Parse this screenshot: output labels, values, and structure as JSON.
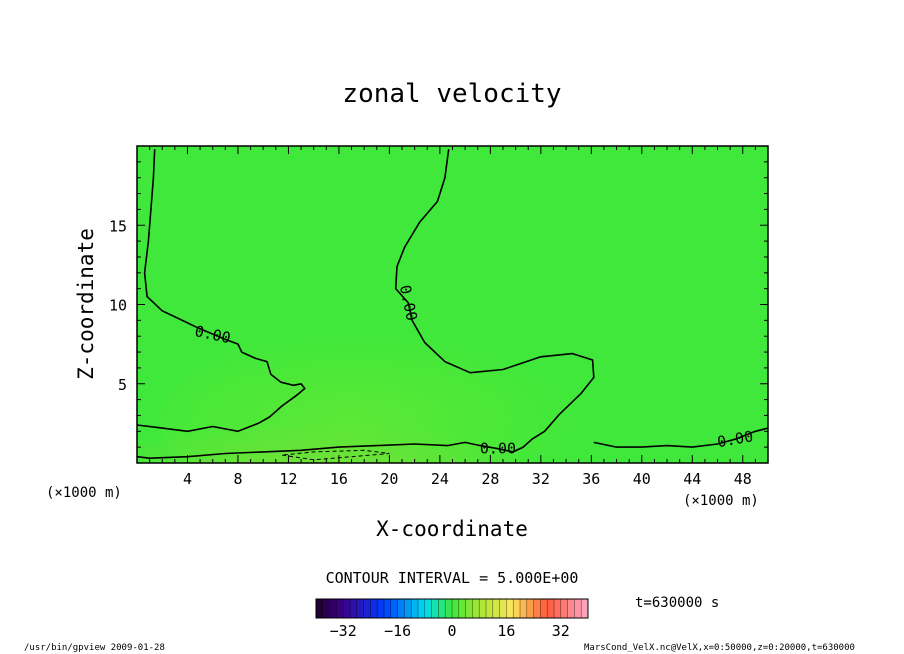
{
  "chart_data": {
    "type": "heatmap",
    "title": "zonal velocity",
    "xlabel": "X-coordinate",
    "ylabel": "Z-coordinate",
    "x_unit": "(×1000 m)",
    "y_unit": "(×1000 m)",
    "xlim": [
      0,
      50
    ],
    "ylim": [
      0,
      20
    ],
    "x_ticks": [
      "4",
      "8",
      "12",
      "16",
      "20",
      "24",
      "28",
      "32",
      "36",
      "40",
      "44",
      "48"
    ],
    "x_tick_values": [
      4,
      8,
      12,
      16,
      20,
      24,
      28,
      32,
      36,
      40,
      44,
      48
    ],
    "y_ticks": [
      "5",
      "10",
      "15"
    ],
    "y_tick_values": [
      5,
      10,
      15
    ],
    "contour_interval_text": "CONTOUR INTERVAL = 5.000E+00",
    "contour_labels": [
      "0.00",
      "0.00",
      "0.00",
      "0.00"
    ],
    "contour_label_positions": [
      [
        6,
        8.1
      ],
      [
        21.5,
        10.1
      ],
      [
        28.6,
        0.9
      ],
      [
        47.4,
        1.5
      ]
    ],
    "contour_zero_line_upper": [
      [
        1.4,
        19.8
      ],
      [
        1.3,
        18
      ],
      [
        1.1,
        16
      ],
      [
        0.9,
        14
      ],
      [
        0.6,
        12
      ],
      [
        0.8,
        10.5
      ],
      [
        2,
        9.6
      ],
      [
        3.6,
        9
      ],
      [
        4.9,
        8.5
      ],
      [
        7,
        7.8
      ],
      [
        8,
        7.5
      ],
      [
        8.3,
        7.0
      ],
      [
        9.4,
        6.6
      ],
      [
        10.3,
        6.4
      ],
      [
        10.6,
        5.6
      ],
      [
        11.4,
        5.1
      ],
      [
        12.4,
        4.9
      ],
      [
        13,
        5.0
      ],
      [
        13.3,
        4.7
      ],
      [
        12.7,
        4.3
      ],
      [
        11.5,
        3.6
      ],
      [
        10.5,
        2.9
      ],
      [
        9.6,
        2.5
      ],
      [
        8,
        2.0
      ],
      [
        6,
        2.3
      ],
      [
        4,
        2.0
      ],
      [
        2,
        2.2
      ],
      [
        0,
        2.4
      ]
    ],
    "contour_zero_line_center": [
      [
        24.7,
        19.8
      ],
      [
        24.4,
        18
      ],
      [
        23.8,
        16.5
      ],
      [
        22.4,
        15.2
      ],
      [
        21.2,
        13.6
      ],
      [
        20.6,
        12.4
      ],
      [
        20.5,
        11.0
      ],
      [
        21.5,
        10.1
      ],
      [
        21.8,
        9.0
      ],
      [
        22.8,
        7.6
      ],
      [
        24.4,
        6.4
      ],
      [
        26.4,
        5.7
      ],
      [
        29,
        5.9
      ],
      [
        32,
        6.7
      ],
      [
        34.5,
        6.9
      ],
      [
        36.1,
        6.5
      ],
      [
        36.2,
        5.4
      ],
      [
        35.2,
        4.4
      ],
      [
        33.5,
        3.1
      ],
      [
        32.3,
        2.0
      ],
      [
        31.3,
        1.5
      ],
      [
        30.6,
        1.0
      ],
      [
        29.8,
        0.7
      ],
      [
        28.6,
        0.9
      ],
      [
        27.2,
        1.1
      ],
      [
        26,
        1.3
      ],
      [
        24.6,
        1.1
      ],
      [
        22,
        1.2
      ],
      [
        19,
        1.1
      ],
      [
        16,
        1.0
      ],
      [
        13,
        0.8
      ],
      [
        10,
        0.7
      ],
      [
        7,
        0.6
      ],
      [
        4,
        0.4
      ],
      [
        1,
        0.3
      ],
      [
        0,
        0.4
      ]
    ],
    "contour_zero_line_right": [
      [
        36.2,
        1.3
      ],
      [
        38,
        1.0
      ],
      [
        40,
        1.0
      ],
      [
        42,
        1.1
      ],
      [
        44,
        1.0
      ],
      [
        46,
        1.2
      ],
      [
        47.4,
        1.5
      ],
      [
        49,
        2.0
      ],
      [
        50,
        2.2
      ]
    ],
    "contour_negative_dashed": [
      [
        11.5,
        0.5
      ],
      [
        14,
        0.2
      ],
      [
        17,
        0.4
      ],
      [
        20,
        0.6
      ],
      [
        18,
        0.8
      ],
      [
        14,
        0.7
      ],
      [
        11.5,
        0.5
      ]
    ],
    "field_colors": {
      "base": "#3fe83a",
      "mid": "#5fe836",
      "low": "#80df38"
    },
    "colorbar": {
      "min": -40,
      "max": 40,
      "step": 2,
      "ticks": [
        "−32",
        "−16",
        "0",
        "16",
        "32"
      ],
      "tick_values": [
        -32,
        -16,
        0,
        16,
        32
      ]
    },
    "time_label": "t=630000 s"
  },
  "footer": {
    "left": "/usr/bin/gpview   2009-01-28",
    "right": "MarsCond_VelX.nc@VelX,x=0:50000,z=0:20000,t=630000"
  }
}
